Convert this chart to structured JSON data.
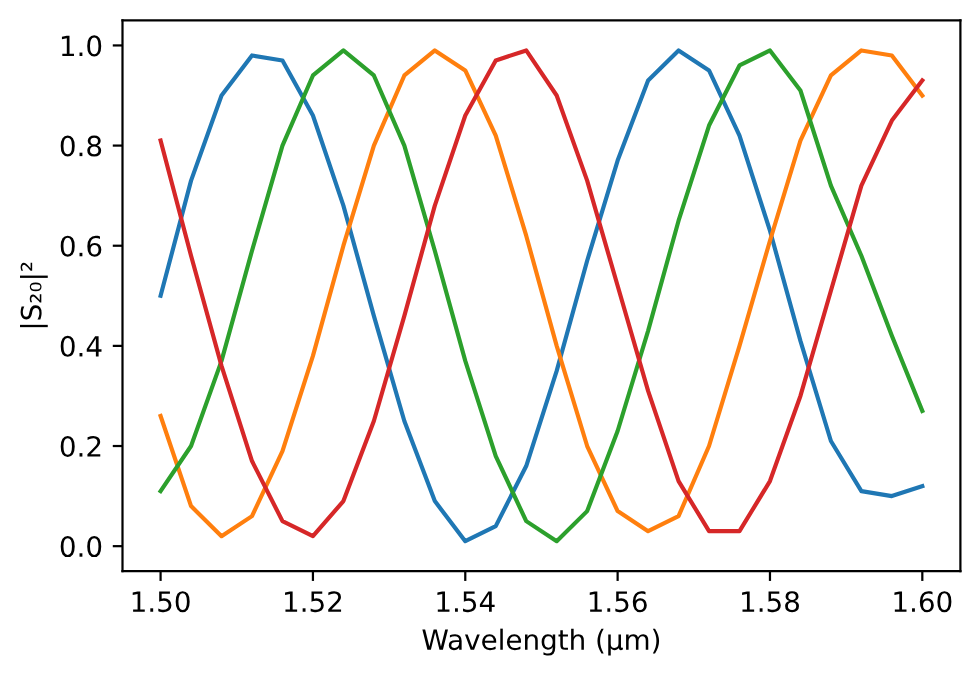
{
  "chart_data": {
    "type": "line",
    "xlabel": "Wavelength (µm)",
    "ylabel": "|S₂₀|²",
    "x": [
      1.5,
      1.504,
      1.508,
      1.512,
      1.516,
      1.52,
      1.524,
      1.528,
      1.532,
      1.536,
      1.54,
      1.544,
      1.548,
      1.552,
      1.556,
      1.56,
      1.564,
      1.568,
      1.572,
      1.576,
      1.58,
      1.584,
      1.588,
      1.592,
      1.596,
      1.6
    ],
    "series": [
      {
        "color": "#1f77b4",
        "values": [
          0.5,
          0.73,
          0.9,
          0.98,
          0.97,
          0.86,
          0.68,
          0.46,
          0.25,
          0.09,
          0.01,
          0.04,
          0.16,
          0.35,
          0.57,
          0.77,
          0.93,
          0.99,
          0.95,
          0.82,
          0.63,
          0.41,
          0.21,
          0.11,
          0.1,
          0.12
        ]
      },
      {
        "color": "#ff7f0e",
        "values": [
          0.26,
          0.08,
          0.02,
          0.06,
          0.19,
          0.38,
          0.6,
          0.8,
          0.94,
          0.99,
          0.95,
          0.82,
          0.62,
          0.4,
          0.2,
          0.07,
          0.03,
          0.06,
          0.2,
          0.4,
          0.61,
          0.81,
          0.94,
          0.99,
          0.98,
          0.9
        ]
      },
      {
        "color": "#2ca02c",
        "values": [
          0.11,
          0.2,
          0.37,
          0.59,
          0.8,
          0.94,
          0.99,
          0.94,
          0.8,
          0.59,
          0.37,
          0.18,
          0.05,
          0.01,
          0.07,
          0.23,
          0.43,
          0.65,
          0.84,
          0.96,
          0.99,
          0.91,
          0.72,
          0.58,
          0.42,
          0.27
        ]
      },
      {
        "color": "#d62728",
        "values": [
          0.81,
          0.58,
          0.36,
          0.17,
          0.05,
          0.02,
          0.09,
          0.25,
          0.46,
          0.68,
          0.86,
          0.97,
          0.99,
          0.9,
          0.73,
          0.52,
          0.31,
          0.13,
          0.03,
          0.03,
          0.13,
          0.3,
          0.51,
          0.72,
          0.85,
          0.93
        ]
      }
    ],
    "xlim": [
      1.495,
      1.605
    ],
    "ylim": [
      -0.05,
      1.05
    ],
    "xticks": [
      {
        "value": 1.5,
        "label": "1.50"
      },
      {
        "value": 1.52,
        "label": "1.52"
      },
      {
        "value": 1.54,
        "label": "1.54"
      },
      {
        "value": 1.56,
        "label": "1.56"
      },
      {
        "value": 1.58,
        "label": "1.58"
      },
      {
        "value": 1.6,
        "label": "1.60"
      }
    ],
    "yticks": [
      {
        "value": 0,
        "label": "0.0"
      },
      {
        "value": 0.2,
        "label": "0.2"
      },
      {
        "value": 0.4,
        "label": "0.4"
      },
      {
        "value": 0.6,
        "label": "0.6"
      },
      {
        "value": 0.8,
        "label": "0.8"
      },
      {
        "value": 1,
        "label": "1.0"
      }
    ]
  }
}
